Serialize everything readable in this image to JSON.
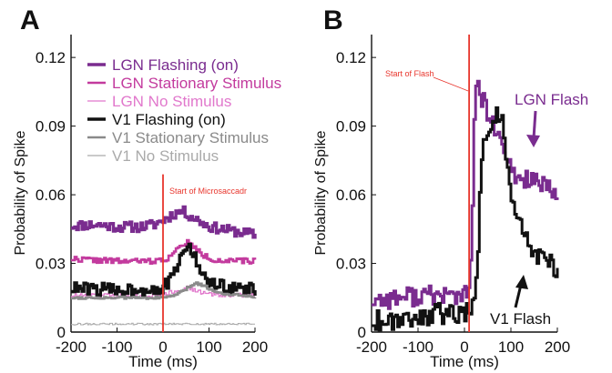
{
  "chart_data": [
    {
      "panel_label": "A",
      "type": "line",
      "xlabel": "Time (ms)",
      "ylabel": "Probability of Spike",
      "xlim": [
        -200,
        200
      ],
      "ylim": [
        0,
        0.13
      ],
      "xticks": [
        -200,
        -100,
        0,
        100,
        200
      ],
      "yticks": [
        0,
        0.03,
        0.06,
        0.09,
        0.12
      ],
      "ytick_labels": [
        "0",
        "0.03",
        "0.06",
        "0.09",
        "0.12"
      ],
      "legend_placement": "top-right",
      "grid": false,
      "annotation": {
        "text": "Start of Microsaccadr",
        "x": 0,
        "color": "#e8362d"
      },
      "series": [
        {
          "name": "LGN Flashing (on)",
          "color": "#7a2c8f",
          "width": 3.4,
          "noise": 0.0022,
          "seed": 11,
          "x": [
            -200,
            -150,
            -100,
            -50,
            -20,
            0,
            20,
            40,
            60,
            100,
            140,
            200
          ],
          "values": [
            0.0465,
            0.047,
            0.046,
            0.046,
            0.047,
            0.049,
            0.0515,
            0.053,
            0.0505,
            0.046,
            0.0445,
            0.0425
          ]
        },
        {
          "name": "LGN Stationary Stimulus",
          "color": "#c33b9e",
          "width": 2.6,
          "noise": 0.0012,
          "seed": 22,
          "x": [
            -200,
            -100,
            -20,
            0,
            20,
            40,
            50,
            60,
            80,
            100,
            140,
            200
          ],
          "values": [
            0.032,
            0.031,
            0.031,
            0.0315,
            0.034,
            0.038,
            0.0395,
            0.038,
            0.0345,
            0.032,
            0.031,
            0.031
          ]
        },
        {
          "name": "LGN No Stimulus",
          "color": "#e178cc",
          "width": 1.2,
          "noise": 0.001,
          "seed": 33,
          "x": [
            -200,
            -50,
            0,
            30,
            50,
            70,
            100,
            200
          ],
          "values": [
            0.016,
            0.016,
            0.0165,
            0.018,
            0.0195,
            0.018,
            0.0165,
            0.016
          ]
        },
        {
          "name": "V1 Flashing (on)",
          "color": "#111111",
          "width": 3.4,
          "noise": 0.0028,
          "seed": 44,
          "x": [
            -200,
            -100,
            -20,
            0,
            20,
            35,
            50,
            65,
            80,
            100,
            140,
            200
          ],
          "values": [
            0.019,
            0.0185,
            0.019,
            0.0195,
            0.024,
            0.031,
            0.039,
            0.034,
            0.026,
            0.021,
            0.0195,
            0.0185
          ]
        },
        {
          "name": "V1 Stationary Stimulus",
          "color": "#8a8a8a",
          "width": 2.6,
          "noise": 0.0005,
          "seed": 55,
          "x": [
            -200,
            -100,
            0,
            30,
            50,
            70,
            90,
            120,
            200
          ],
          "values": [
            0.015,
            0.015,
            0.015,
            0.0165,
            0.019,
            0.0215,
            0.02,
            0.017,
            0.0155
          ]
        },
        {
          "name": "V1 No Stimulus",
          "color": "#aaaaaa",
          "width": 1.0,
          "noise": 0.0004,
          "seed": 66,
          "x": [
            -200,
            200
          ],
          "values": [
            0.0035,
            0.0035
          ]
        }
      ]
    },
    {
      "panel_label": "B",
      "type": "line",
      "xlabel": "Time (ms)",
      "ylabel": "Probability of Spike",
      "xlim": [
        -200,
        200
      ],
      "ylim": [
        0,
        0.13
      ],
      "xticks": [
        -200,
        -100,
        0,
        100,
        200
      ],
      "yticks": [
        0,
        0.03,
        0.06,
        0.09,
        0.12
      ],
      "ytick_labels": [
        "0",
        "0.03",
        "0.06",
        "0.09",
        "0.12"
      ],
      "grid": false,
      "annotations": [
        {
          "text": "Start of Flash",
          "x": 10,
          "color": "#e8362d"
        },
        {
          "text": "LGN Flash",
          "color": "#7a2c8f",
          "target": [
            140,
            0.075
          ]
        },
        {
          "text": "V1 Flash",
          "color": "#111111",
          "target": [
            130,
            0.032
          ]
        }
      ],
      "series": [
        {
          "name": "LGN Flash",
          "color": "#7a2c8f",
          "width": 3.0,
          "noise": 0.0045,
          "seed": 77,
          "x": [
            -200,
            -150,
            -100,
            -50,
            0,
            10,
            15,
            20,
            25,
            30,
            40,
            50,
            60,
            70,
            80,
            100,
            120,
            140,
            160,
            180,
            200
          ],
          "values": [
            0.014,
            0.015,
            0.016,
            0.016,
            0.016,
            0.017,
            0.05,
            0.095,
            0.108,
            0.104,
            0.1,
            0.095,
            0.09,
            0.086,
            0.08,
            0.07,
            0.066,
            0.068,
            0.064,
            0.062,
            0.058
          ]
        },
        {
          "name": "V1 Flash",
          "color": "#111111",
          "width": 3.0,
          "noise": 0.0048,
          "seed": 88,
          "x": [
            -200,
            -150,
            -100,
            -50,
            0,
            10,
            20,
            30,
            35,
            40,
            50,
            60,
            70,
            80,
            90,
            100,
            120,
            140,
            160,
            180,
            200
          ],
          "values": [
            0.005,
            0.006,
            0.007,
            0.008,
            0.009,
            0.01,
            0.012,
            0.045,
            0.075,
            0.088,
            0.09,
            0.095,
            0.093,
            0.098,
            0.072,
            0.055,
            0.045,
            0.038,
            0.033,
            0.03,
            0.027
          ]
        }
      ]
    }
  ]
}
